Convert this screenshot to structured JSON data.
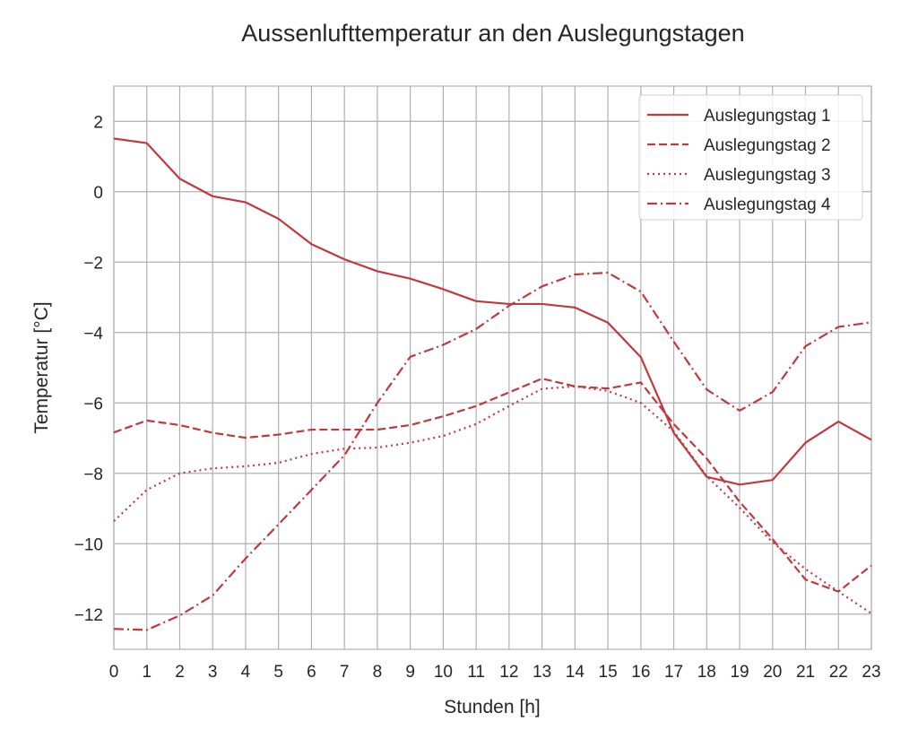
{
  "chart_data": {
    "type": "line",
    "title": "Aussenlufttemperatur an den Auslegungstagen",
    "xlabel": "Stunden [h]",
    "ylabel": "Temperatur [°C]",
    "x": [
      0,
      1,
      2,
      3,
      4,
      5,
      6,
      7,
      8,
      9,
      10,
      11,
      12,
      13,
      14,
      15,
      16,
      17,
      18,
      19,
      20,
      21,
      22,
      23
    ],
    "xticks": [
      "0",
      "1",
      "2",
      "3",
      "4",
      "5",
      "6",
      "7",
      "8",
      "9",
      "10",
      "11",
      "12",
      "13",
      "14",
      "15",
      "16",
      "17",
      "18",
      "19",
      "20",
      "21",
      "22",
      "23"
    ],
    "yticks": [
      2,
      0,
      -2,
      -4,
      -6,
      -8,
      -10,
      -12
    ],
    "ytick_labels": [
      "2",
      "0",
      "−2",
      "−4",
      "−6",
      "−8",
      "−10",
      "−12"
    ],
    "xlim": [
      0,
      23
    ],
    "ylim": [
      -13,
      3
    ],
    "grid": true,
    "legend_position": "upper right",
    "color": "#c0393f",
    "series": [
      {
        "name": "Auslegungstag 1",
        "style": "solid",
        "values": [
          1.51,
          1.38,
          0.37,
          -0.13,
          -0.3,
          -0.77,
          -1.49,
          -1.92,
          -2.26,
          -2.47,
          -2.77,
          -3.11,
          -3.19,
          -3.19,
          -3.29,
          -3.72,
          -4.7,
          -6.85,
          -8.1,
          -8.32,
          -8.19,
          -7.13,
          -6.53,
          -7.05
        ]
      },
      {
        "name": "Auslegungstag 2",
        "style": "dashed",
        "values": [
          -6.84,
          -6.5,
          -6.63,
          -6.85,
          -6.99,
          -6.9,
          -6.76,
          -6.76,
          -6.76,
          -6.63,
          -6.38,
          -6.09,
          -5.7,
          -5.31,
          -5.53,
          -5.59,
          -5.42,
          -6.6,
          -7.58,
          -8.81,
          -9.87,
          -11.02,
          -11.36,
          -10.62
        ]
      },
      {
        "name": "Auslegungstag 3",
        "style": "dotted",
        "values": [
          -9.36,
          -8.47,
          -8.0,
          -7.86,
          -7.8,
          -7.7,
          -7.45,
          -7.3,
          -7.27,
          -7.13,
          -6.94,
          -6.6,
          -6.09,
          -5.6,
          -5.53,
          -5.66,
          -6.0,
          -6.81,
          -8.08,
          -8.98,
          -9.96,
          -10.72,
          -11.36,
          -11.98
        ]
      },
      {
        "name": "Auslegungstag 4",
        "style": "dashdot",
        "values": [
          -12.42,
          -12.45,
          -12.04,
          -11.47,
          -10.42,
          -9.45,
          -8.47,
          -7.49,
          -6.0,
          -4.69,
          -4.35,
          -3.9,
          -3.24,
          -2.69,
          -2.35,
          -2.3,
          -2.84,
          -4.26,
          -5.62,
          -6.22,
          -5.69,
          -4.39,
          -3.84,
          -3.71
        ]
      }
    ]
  }
}
